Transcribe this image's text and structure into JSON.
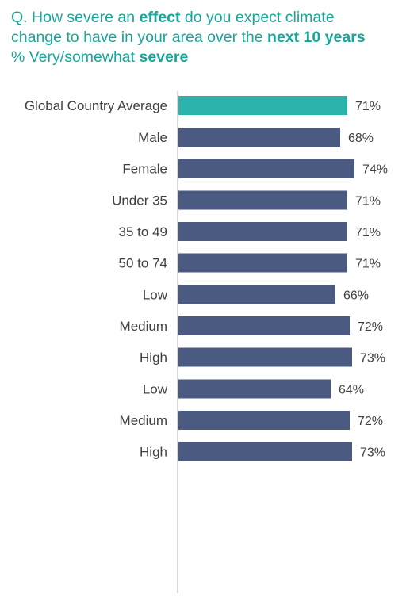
{
  "question": {
    "line1_pre": "Q. How severe an ",
    "line1_bold": "effect",
    "line1_post": " do you expect climate",
    "line2_pre": "change to have in your area over the ",
    "line2_bold": "next 10 years",
    "line3_pre": "% Very/somewhat ",
    "line3_bold": "severe"
  },
  "colors": {
    "title": "#1aa59a",
    "highlight_bar": "#2bb3ab",
    "bar": "#4a5a80",
    "axis": "#b0b0b0",
    "text": "#404040"
  },
  "chart_data": {
    "type": "bar",
    "orientation": "horizontal",
    "value_suffix": "%",
    "xlim": [
      0,
      100
    ],
    "categories": [
      "Global Country Average",
      "Male",
      "Female",
      "Under 35",
      "35 to 49",
      "50 to 74",
      "Low",
      "Medium",
      "High",
      "Low",
      "Medium",
      "High"
    ],
    "values": [
      71,
      68,
      74,
      71,
      71,
      71,
      66,
      72,
      73,
      64,
      72,
      73
    ],
    "value_labels": [
      "71%",
      "68%",
      "74%",
      "71%",
      "71%",
      "71%",
      "66%",
      "72%",
      "73%",
      "64%",
      "72%",
      "73%"
    ],
    "highlighted": [
      true,
      false,
      false,
      false,
      false,
      false,
      false,
      false,
      false,
      false,
      false,
      false
    ],
    "groups": [
      [
        0
      ],
      [
        1,
        2
      ],
      [
        3,
        4,
        5
      ],
      [
        6,
        7,
        8
      ],
      [
        9,
        10,
        11
      ]
    ]
  }
}
